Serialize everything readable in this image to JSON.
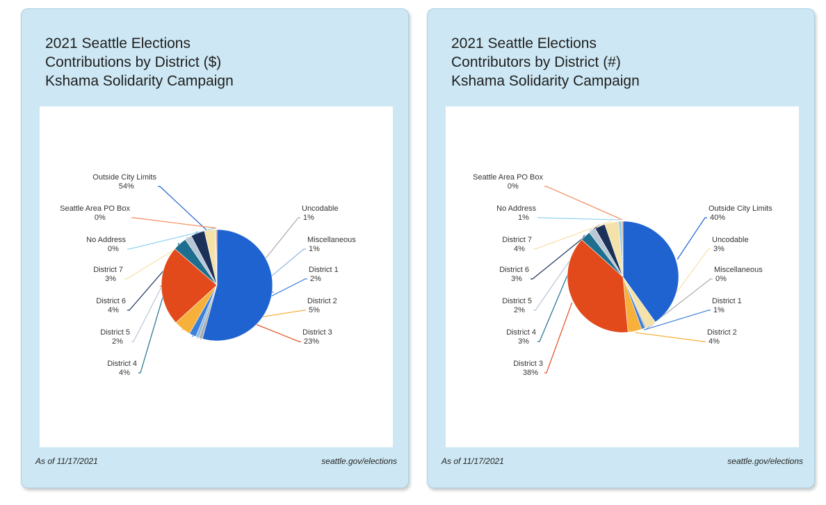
{
  "chart_data": [
    {
      "type": "pie",
      "title": [
        "2021 Seattle Elections",
        "Contributions by District ($)",
        "Kshama Solidarity Campaign"
      ],
      "footer_left": "As of 11/17/2021",
      "footer_right": "seattle.gov/elections",
      "slices": [
        {
          "label": "Outside City Limits",
          "value": 54,
          "pct": "54%",
          "color": "#1f63d1"
        },
        {
          "label": "Uncodable",
          "value": 1,
          "pct": "1%",
          "color": "#a9a9a9"
        },
        {
          "label": "Miscellaneous",
          "value": 1,
          "pct": "1%",
          "color": "#8fb8e4"
        },
        {
          "label": "District 1",
          "value": 2,
          "pct": "2%",
          "color": "#3b7fd6"
        },
        {
          "label": "District 2",
          "value": 5,
          "pct": "5%",
          "color": "#f7b03a"
        },
        {
          "label": "District 3",
          "value": 23,
          "pct": "23%",
          "color": "#e24a1c"
        },
        {
          "label": "District 4",
          "value": 4,
          "pct": "4%",
          "color": "#1e6f8f"
        },
        {
          "label": "District 5",
          "value": 2,
          "pct": "2%",
          "color": "#b9c6d6"
        },
        {
          "label": "District 6",
          "value": 4,
          "pct": "4%",
          "color": "#1b3158"
        },
        {
          "label": "District 7",
          "value": 3,
          "pct": "3%",
          "color": "#f5e2a8"
        },
        {
          "label": "No Address",
          "value": 0.3,
          "pct": "0%",
          "color": "#8fd3f1"
        },
        {
          "label": "Seattle Area PO Box",
          "value": 0.3,
          "pct": "0%",
          "color": "#f28a5a"
        }
      ]
    },
    {
      "type": "pie",
      "title": [
        "2021 Seattle Elections",
        "Contributors by District (#)",
        "Kshama Solidarity Campaign"
      ],
      "footer_left": "As of 11/17/2021",
      "footer_right": "seattle.gov/elections",
      "slices": [
        {
          "label": "Outside City Limits",
          "value": 40,
          "pct": "40%",
          "color": "#1f63d1"
        },
        {
          "label": "Uncodable",
          "value": 3,
          "pct": "3%",
          "color": "#f5e2a8"
        },
        {
          "label": "Miscellaneous",
          "value": 0.4,
          "pct": "0%",
          "color": "#a9a9a9"
        },
        {
          "label": "District 1",
          "value": 1,
          "pct": "1%",
          "color": "#3b7fd6"
        },
        {
          "label": "District 2",
          "value": 4,
          "pct": "4%",
          "color": "#f7b03a"
        },
        {
          "label": "District 3",
          "value": 38,
          "pct": "38%",
          "color": "#e24a1c"
        },
        {
          "label": "District 4",
          "value": 3,
          "pct": "3%",
          "color": "#1e6f8f"
        },
        {
          "label": "District 5",
          "value": 2,
          "pct": "2%",
          "color": "#b9c6d6"
        },
        {
          "label": "District 6",
          "value": 3,
          "pct": "3%",
          "color": "#1b3158"
        },
        {
          "label": "District 7",
          "value": 4,
          "pct": "4%",
          "color": "#f5e2a8"
        },
        {
          "label": "No Address",
          "value": 1,
          "pct": "1%",
          "color": "#8fd3f1"
        },
        {
          "label": "Seattle Area PO Box",
          "value": 0.3,
          "pct": "0%",
          "color": "#f28a5a"
        }
      ]
    }
  ]
}
